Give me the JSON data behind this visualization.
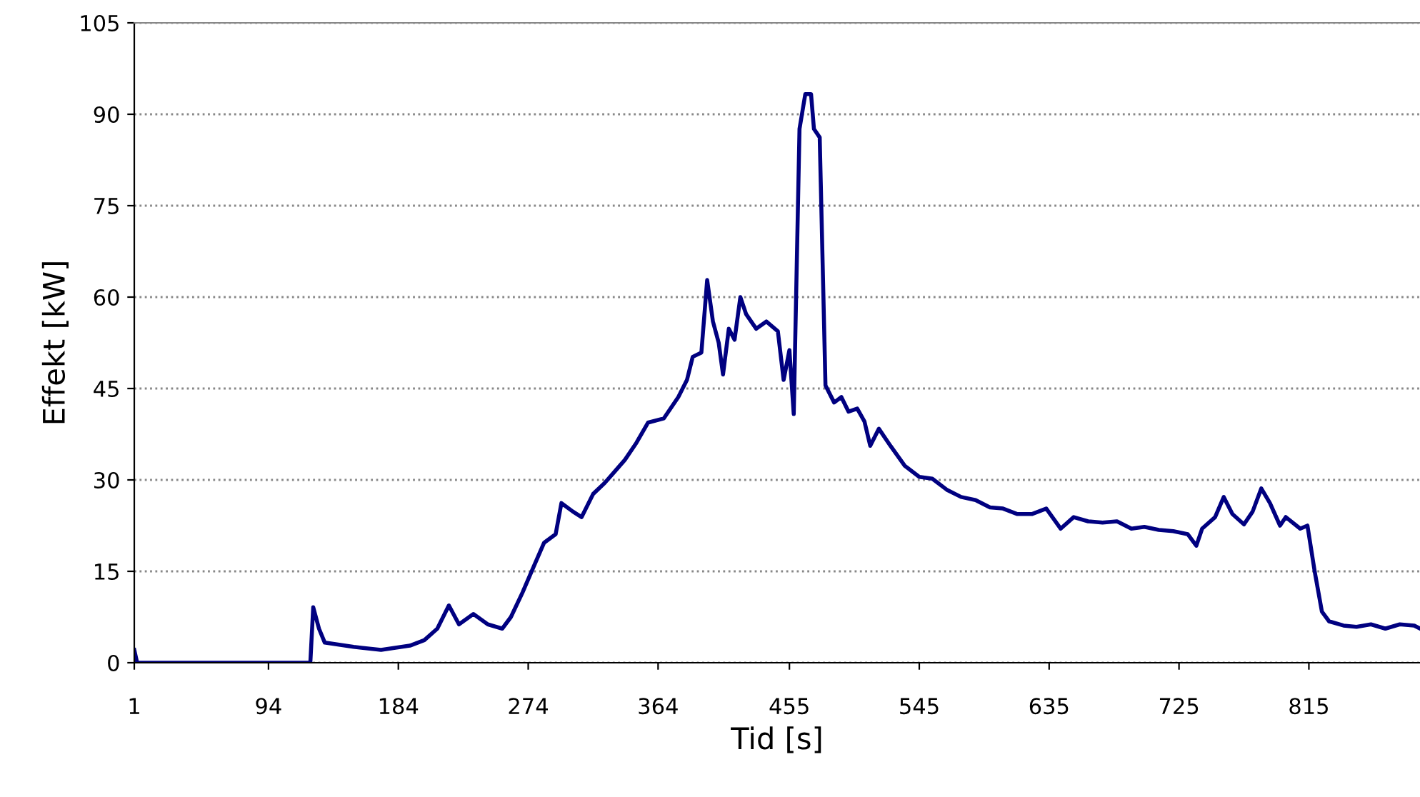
{
  "chart_data": {
    "type": "line",
    "xlabel": "Tid [s]",
    "ylabel": "Effekt [kW]",
    "xlim": [
      1,
      892
    ],
    "xticks": [
      1,
      94,
      184,
      274,
      364,
      455,
      545,
      635,
      725,
      815
    ],
    "ylim": [
      0,
      105
    ],
    "yticks": [
      0,
      15,
      30,
      45,
      60,
      75,
      90,
      105
    ],
    "grid": "y",
    "line_style": "solid",
    "series": [
      {
        "color": "#000080",
        "x": [
          1,
          3,
          118,
          123,
          125,
          129,
          133,
          153,
          172,
          192,
          202,
          211,
          219,
          226,
          236,
          246,
          256,
          262,
          270,
          278,
          285,
          293,
          297,
          305,
          311,
          319,
          327,
          334,
          341,
          349,
          357,
          368,
          378,
          384,
          388,
          394,
          398,
          402,
          406,
          409,
          413,
          417,
          421,
          425,
          432,
          439,
          447,
          451,
          455,
          458,
          462,
          466,
          470,
          472,
          476,
          480,
          486,
          491,
          496,
          502,
          507,
          511,
          517,
          525,
          535,
          545,
          554,
          564,
          574,
          584,
          594,
          603,
          613,
          623,
          633,
          643,
          652,
          662,
          672,
          682,
          692,
          701,
          711,
          721,
          731,
          737,
          741,
          750,
          756,
          762,
          770,
          776,
          782,
          788,
          795,
          799,
          809,
          814,
          819,
          824,
          829,
          839,
          848,
          858,
          868,
          878,
          888,
          892
        ],
        "values": [
          2.1,
          0,
          0,
          0,
          9.1,
          5.6,
          3.3,
          2.6,
          2.1,
          2.8,
          3.7,
          5.6,
          9.4,
          6.3,
          8.0,
          6.3,
          5.6,
          7.5,
          11.5,
          15.9,
          19.7,
          21.1,
          26.2,
          24.8,
          23.9,
          27.7,
          29.5,
          31.4,
          33.3,
          36.1,
          39.4,
          40.1,
          43.6,
          46.4,
          50.2,
          50.9,
          62.8,
          56.0,
          52.5,
          47.3,
          54.8,
          53.0,
          60.0,
          57.2,
          54.8,
          56.0,
          54.4,
          46.4,
          51.3,
          40.8,
          87.6,
          93.3,
          93.3,
          87.6,
          86.2,
          45.5,
          42.7,
          43.6,
          41.2,
          41.7,
          39.6,
          35.6,
          38.4,
          35.6,
          32.3,
          30.5,
          30.2,
          28.4,
          27.2,
          26.7,
          25.5,
          25.3,
          24.4,
          24.4,
          25.3,
          22.0,
          23.9,
          23.2,
          23.0,
          23.2,
          22.0,
          22.3,
          21.8,
          21.6,
          21.1,
          19.2,
          22.0,
          23.9,
          27.2,
          24.4,
          22.7,
          24.8,
          28.6,
          26.2,
          22.5,
          23.9,
          22.0,
          22.5,
          15.0,
          8.4,
          6.8,
          6.1,
          5.9,
          6.3,
          5.6,
          6.3,
          6.1,
          5.6
        ]
      }
    ]
  }
}
